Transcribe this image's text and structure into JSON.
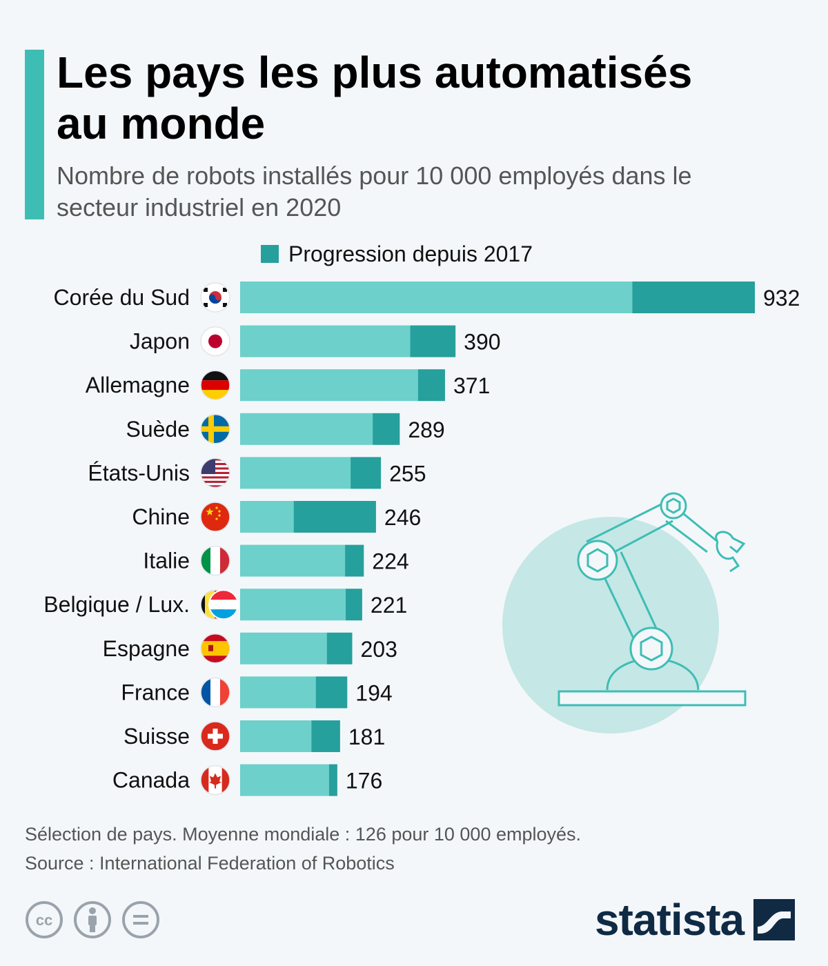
{
  "header": {
    "title": "Les pays les plus automatisés au monde",
    "subtitle": "Nombre de robots installés pour 10 000 employés dans le secteur industriel en 2020"
  },
  "legend": {
    "label": "Progression depuis 2017",
    "color": "#26a09c"
  },
  "colors": {
    "base_bar": "#6dd0ca",
    "progression_bar": "#26a09c",
    "accent": "#3dbdb4",
    "illustration_circle": "#c5e7e6",
    "illustration_stroke": "#3dbdb4"
  },
  "chart_data": {
    "type": "bar",
    "orientation": "horizontal",
    "stacked": true,
    "title": "Les pays les plus automatisés au monde",
    "categories": [
      "Corée du Sud",
      "Japon",
      "Allemagne",
      "Suède",
      "États-Unis",
      "Chine",
      "Italie",
      "Belgique / Lux.",
      "Espagne",
      "France",
      "Suisse",
      "Canada"
    ],
    "totals": [
      932,
      390,
      371,
      289,
      255,
      246,
      224,
      221,
      203,
      194,
      181,
      176
    ],
    "series": [
      {
        "name": "",
        "values": [
          710,
          308,
          322,
          240,
          200,
          97,
          190,
          191,
          157,
          137,
          129,
          161
        ]
      },
      {
        "name": "Progression depuis 2017",
        "values": [
          222,
          82,
          49,
          49,
          55,
          149,
          34,
          30,
          46,
          57,
          52,
          15
        ]
      }
    ],
    "flags": [
      "south-korea-flag-icon",
      "japan-flag-icon",
      "germany-flag-icon",
      "sweden-flag-icon",
      "usa-flag-icon",
      "china-flag-icon",
      "italy-flag-icon",
      "belgium-luxembourg-flag-icon",
      "spain-flag-icon",
      "france-flag-icon",
      "switzerland-flag-icon",
      "canada-flag-icon"
    ],
    "xlim": [
      0,
      932
    ],
    "grid": false,
    "legend_position": "top"
  },
  "illustration": {
    "icon": "robot-arm-icon"
  },
  "footer": {
    "note": "Sélection de pays. Moyenne mondiale : 126 pour 10 000 employés.",
    "source": "Source : International Federation of Robotics",
    "license_icons": [
      "creative-commons-icon",
      "attribution-icon",
      "no-derivatives-icon"
    ],
    "brand": "statista",
    "brand_icon": "statista-logo-icon"
  }
}
